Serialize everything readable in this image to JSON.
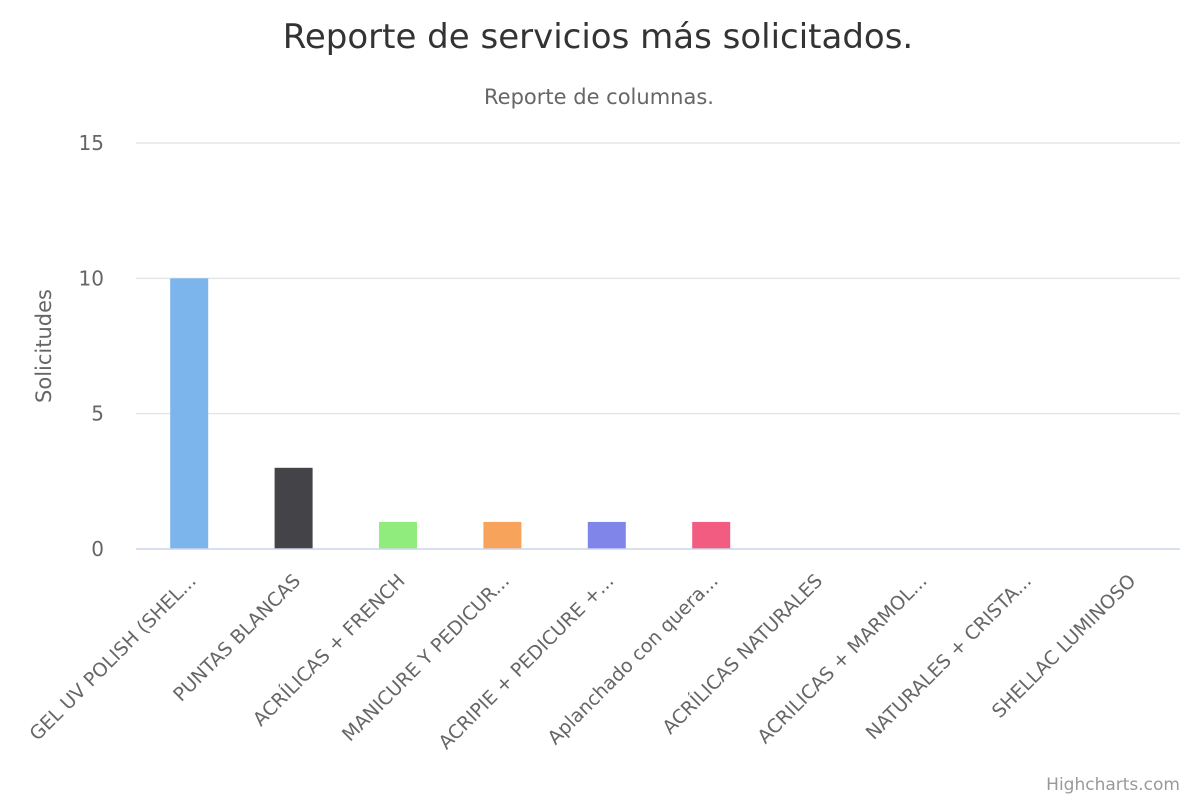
{
  "chart_data": {
    "type": "bar",
    "title": "Reporte de servicios más solicitados.",
    "subtitle": "Reporte de columnas.",
    "ylabel": "Solicitudes",
    "xlabel": "",
    "ylim": [
      0,
      15
    ],
    "yticks": [
      0,
      5,
      10,
      15
    ],
    "grid": true,
    "legend": "none",
    "categories": [
      "GEL UV POLISH (SHEL...",
      "PUNTAS BLANCAS",
      "ACRÍLICAS + FRENCH",
      "MANICURE Y PEDICUR...",
      "ACRIPIE + PEDICURE +...",
      "Aplanchado con quera...",
      "ACRÍLICAS NATURALES",
      "ACRILICAS + MARMOL...",
      "NATURALES + CRISTA...",
      "SHELLAC LUMINOSO"
    ],
    "values": [
      10,
      3,
      1,
      1,
      1,
      1,
      0,
      0,
      0,
      0
    ],
    "colors": [
      "#7cb5ec",
      "#434348",
      "#90ed7d",
      "#f7a35c",
      "#8085e9",
      "#f15c80",
      "#e4d354",
      "#2b908f",
      "#f45b5b",
      "#91e8e1"
    ]
  },
  "credits": "Highcharts.com"
}
